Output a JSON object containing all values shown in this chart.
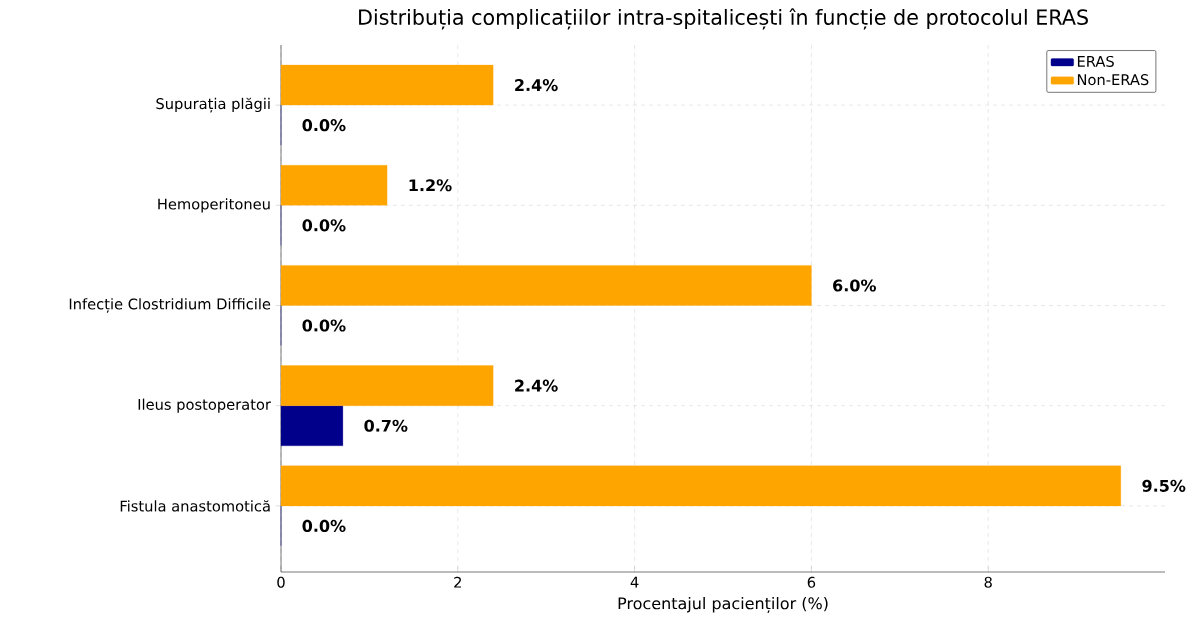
{
  "chart_data": {
    "type": "bar",
    "orientation": "horizontal",
    "title": "Distribuția complicațiilor intra-spitalicești în funcție de protocolul ERAS",
    "xlabel": "Procentajul pacienților (%)",
    "categories": [
      "Supurația plăgii",
      "Hemoperitoneu",
      "Infecție Clostridium Difficile",
      "Ileus postoperator",
      "Fistula anastomotică"
    ],
    "series": [
      {
        "name": "ERAS",
        "color": "#00008b",
        "values": [
          0.0,
          0.0,
          0.0,
          0.7,
          0.0
        ],
        "value_labels": [
          "0.0%",
          "0.0%",
          "0.0%",
          "0.7%",
          "0.0%"
        ]
      },
      {
        "name": "Non-ERAS",
        "color": "#ffa500",
        "values": [
          2.4,
          1.2,
          6.0,
          2.4,
          9.5
        ],
        "value_labels": [
          "2.4%",
          "1.2%",
          "6.0%",
          "2.4%",
          "9.5%"
        ]
      }
    ],
    "xlim": [
      0,
      10
    ],
    "xticks": [
      0,
      2,
      4,
      6,
      8
    ],
    "grid": true,
    "legend": "top right"
  }
}
